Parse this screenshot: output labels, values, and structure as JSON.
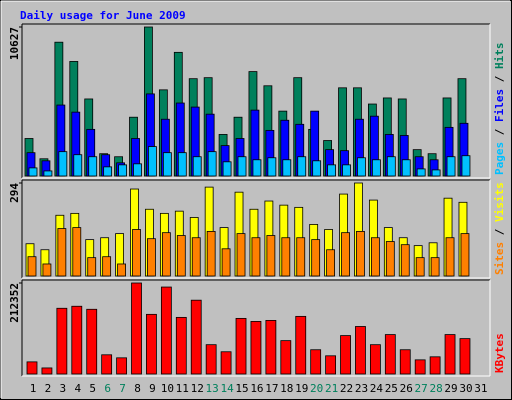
{
  "chart_data": [
    {
      "type": "bar",
      "title": "Daily usage for June 2009",
      "ylim": [
        0,
        10627
      ],
      "yticks": [
        10627
      ],
      "series": [
        {
          "name": "Hits",
          "color": "#00805c",
          "values": [
            2675,
            1229,
            9543,
            8170,
            5495,
            1591,
            1374,
            4193,
            10627,
            6145,
            8820,
            6941,
            7013,
            2964,
            4193,
            7447,
            6435,
            4627,
            7013,
            3326,
            2530,
            6290,
            6290,
            5133,
            5567,
            5495,
            1880,
            1591,
            5567,
            6941,
            0
          ]
        },
        {
          "name": "Files",
          "color": "#0000ff",
          "values": [
            1663,
            1084,
            5061,
            4555,
            3326,
            1518,
            940,
            2675,
            5856,
            4049,
            5205,
            4916,
            4410,
            2169,
            2675,
            4699,
            3253,
            3976,
            3687,
            4627,
            1880,
            1807,
            4049,
            4266,
            2964,
            2892,
            1374,
            1157,
            3470,
            3759,
            0
          ]
        },
        {
          "name": "Pages",
          "color": "#00c0ff",
          "values": [
            578,
            361,
            1735,
            1518,
            1374,
            651,
            795,
            868,
            2097,
            1663,
            1663,
            1374,
            1735,
            1012,
            1374,
            1157,
            1301,
            1157,
            1374,
            1084,
            795,
            795,
            1301,
            1157,
            1374,
            1157,
            506,
            434,
            1374,
            1446,
            0
          ]
        }
      ]
    },
    {
      "type": "bar",
      "ylim": [
        0,
        294
      ],
      "yticks": [
        294
      ],
      "series": [
        {
          "name": "Visits",
          "color": "#ffff00",
          "values": [
            102,
            83,
            192,
            198,
            115,
            121,
            134,
            275,
            211,
            198,
            205,
            185,
            281,
            153,
            265,
            211,
            237,
            224,
            217,
            163,
            147,
            259,
            294,
            240,
            153,
            121,
            96,
            105,
            246,
            233,
            0
          ]
        },
        {
          "name": "Sites",
          "color": "#ff8000",
          "values": [
            61,
            38,
            150,
            153,
            58,
            61,
            38,
            147,
            118,
            137,
            128,
            121,
            141,
            86,
            134,
            121,
            128,
            121,
            121,
            115,
            83,
            137,
            141,
            121,
            109,
            99,
            58,
            58,
            121,
            134,
            0
          ]
        }
      ]
    },
    {
      "type": "bar",
      "ylim": [
        0,
        212352
      ],
      "yticks": [
        212352
      ],
      "categories": [
        "1",
        "2",
        "3",
        "4",
        "5",
        "6",
        "7",
        "8",
        "9",
        "10",
        "11",
        "12",
        "13",
        "14",
        "15",
        "16",
        "17",
        "18",
        "19",
        "20",
        "21",
        "22",
        "23",
        "24",
        "25",
        "26",
        "27",
        "28",
        "29",
        "30",
        "31"
      ],
      "category_colors": [
        "#000000",
        "#000000",
        "#000000",
        "#000000",
        "#000000",
        "#00805c",
        "#00805c",
        "#000000",
        "#000000",
        "#000000",
        "#000000",
        "#000000",
        "#00805c",
        "#00805c",
        "#000000",
        "#000000",
        "#000000",
        "#000000",
        "#000000",
        "#00805c",
        "#00805c",
        "#000000",
        "#000000",
        "#000000",
        "#000000",
        "#000000",
        "#00805c",
        "#00805c",
        "#000000",
        "#000000",
        "#000000"
      ],
      "series": [
        {
          "name": "KBytes",
          "color": "#ff0000",
          "values": [
            28314,
            14157,
            153367,
            158086,
            151008,
            44830,
            37752,
            212352,
            139210,
            202914,
            132131,
            172243,
            68425,
            51908,
            129771,
            122692,
            125051,
            77862,
            134489,
            56627,
            42470,
            89659,
            110894,
            68425,
            92020,
            56627,
            33032,
            40111,
            92020,
            82581,
            0
          ]
        }
      ]
    }
  ]
}
